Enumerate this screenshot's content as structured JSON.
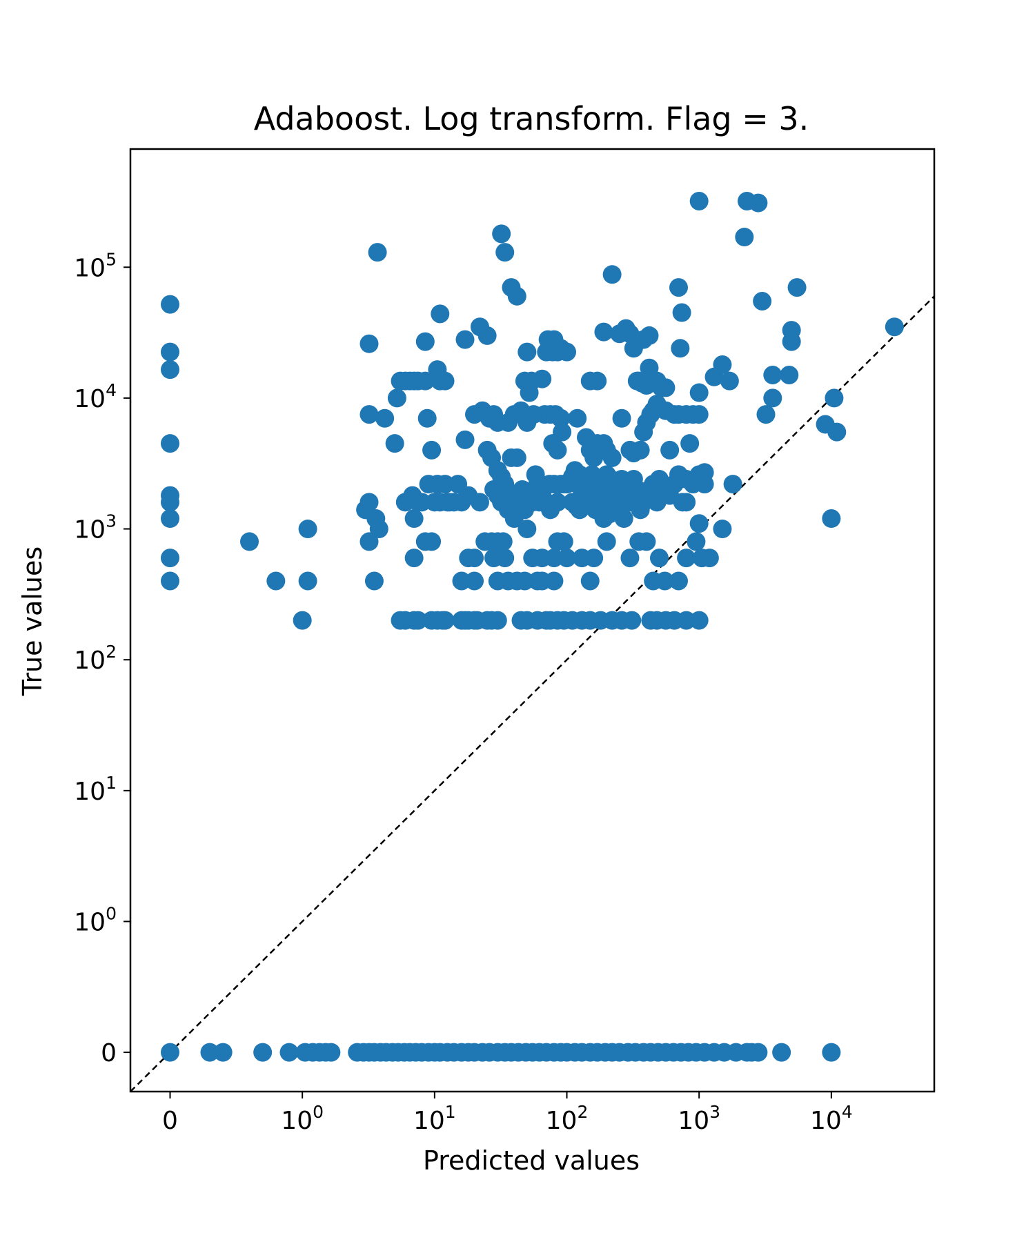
{
  "chart_data": {
    "type": "scatter",
    "title": "Adaboost. Log transform. Flag = 3.",
    "xlabel": "Predicted values",
    "ylabel": "True values",
    "xscale": "symlog",
    "yscale": "symlog",
    "xlim": [
      -0.3,
      60000
    ],
    "ylim": [
      -0.3,
      800000
    ],
    "xticks": [
      {
        "value": 0,
        "base": "0",
        "exp": ""
      },
      {
        "value": 1,
        "base": "10",
        "exp": "0"
      },
      {
        "value": 10,
        "base": "10",
        "exp": "1"
      },
      {
        "value": 100,
        "base": "10",
        "exp": "2"
      },
      {
        "value": 1000,
        "base": "10",
        "exp": "3"
      },
      {
        "value": 10000,
        "base": "10",
        "exp": "4"
      }
    ],
    "yticks": [
      {
        "value": 0,
        "base": "0",
        "exp": ""
      },
      {
        "value": 1,
        "base": "10",
        "exp": "0"
      },
      {
        "value": 10,
        "base": "10",
        "exp": "1"
      },
      {
        "value": 100,
        "base": "10",
        "exp": "2"
      },
      {
        "value": 1000,
        "base": "10",
        "exp": "3"
      },
      {
        "value": 10000,
        "base": "10",
        "exp": "4"
      },
      {
        "value": 100000,
        "base": "10",
        "exp": "5"
      }
    ],
    "grid": false,
    "reference_line": "y = x",
    "colors": {
      "points": "#1f77b4",
      "reference_line": "#000000"
    },
    "points": [
      [
        0,
        52000
      ],
      [
        0,
        22500
      ],
      [
        0,
        16500
      ],
      [
        0,
        4500
      ],
      [
        0,
        1800
      ],
      [
        0,
        1600
      ],
      [
        0,
        1200
      ],
      [
        0,
        600
      ],
      [
        0,
        400
      ],
      [
        0.6,
        800
      ],
      [
        0.8,
        400
      ],
      [
        1,
        200
      ],
      [
        1.1,
        1000
      ],
      [
        1.1,
        400
      ],
      [
        3,
        1400
      ],
      [
        3.2,
        1600
      ],
      [
        3.2,
        800
      ],
      [
        3.6,
        1200
      ],
      [
        3.8,
        1000
      ],
      [
        3.5,
        400
      ],
      [
        3.2,
        26000
      ],
      [
        3.2,
        7500
      ],
      [
        3.7,
        130000
      ],
      [
        4.2,
        7000
      ],
      [
        5,
        4500
      ],
      [
        5.2,
        10000
      ],
      [
        5.5,
        13500
      ],
      [
        6,
        13500
      ],
      [
        6.5,
        13500
      ],
      [
        7,
        13500
      ],
      [
        7.5,
        13500
      ],
      [
        8.5,
        13500
      ],
      [
        8.5,
        27000
      ],
      [
        8.8,
        7000
      ],
      [
        9.5,
        4000
      ],
      [
        10.5,
        16500
      ],
      [
        11,
        13500
      ],
      [
        12,
        13500
      ],
      [
        11,
        44000
      ],
      [
        6,
        1600
      ],
      [
        6.8,
        1800
      ],
      [
        7,
        1200
      ],
      [
        7.5,
        1600
      ],
      [
        8,
        1600
      ],
      [
        8.5,
        800
      ],
      [
        9.5,
        800
      ],
      [
        9,
        2200
      ],
      [
        10,
        1600
      ],
      [
        10.5,
        2200
      ],
      [
        11,
        1600
      ],
      [
        12,
        2200
      ],
      [
        12.5,
        1600
      ],
      [
        13,
        1600
      ],
      [
        14,
        1600
      ],
      [
        15,
        2200
      ],
      [
        16,
        1600
      ],
      [
        17,
        4800
      ],
      [
        18,
        1800
      ],
      [
        7,
        600
      ],
      [
        5.5,
        200
      ],
      [
        6,
        200
      ],
      [
        7,
        200
      ],
      [
        7.5,
        200
      ],
      [
        9.5,
        200
      ],
      [
        10.5,
        200
      ],
      [
        11.5,
        200
      ],
      [
        12,
        200
      ],
      [
        16,
        200
      ],
      [
        17,
        200
      ],
      [
        18,
        200
      ],
      [
        20,
        200
      ],
      [
        21,
        200
      ],
      [
        25,
        200
      ],
      [
        27,
        200
      ],
      [
        30,
        200
      ],
      [
        17,
        28000
      ],
      [
        20,
        7500
      ],
      [
        22,
        35000
      ],
      [
        25,
        30000
      ],
      [
        23,
        8000
      ],
      [
        26,
        7000
      ],
      [
        28,
        7500
      ],
      [
        30,
        6500
      ],
      [
        25,
        4000
      ],
      [
        27,
        3500
      ],
      [
        30,
        2800
      ],
      [
        32,
        2500
      ],
      [
        34,
        2200
      ],
      [
        36,
        1800
      ],
      [
        38,
        1600
      ],
      [
        40,
        1500
      ],
      [
        42,
        1800
      ],
      [
        36,
        1400
      ],
      [
        40,
        1200
      ],
      [
        44,
        1600
      ],
      [
        46,
        2000
      ],
      [
        50,
        1800
      ],
      [
        48,
        1400
      ],
      [
        30,
        1800
      ],
      [
        32,
        1600
      ],
      [
        28,
        2000
      ],
      [
        22,
        1600
      ],
      [
        24,
        800
      ],
      [
        27,
        800
      ],
      [
        30,
        800
      ],
      [
        33,
        800
      ],
      [
        20,
        600
      ],
      [
        18,
        600
      ],
      [
        28,
        600
      ],
      [
        34,
        600
      ],
      [
        16,
        400
      ],
      [
        20,
        400
      ],
      [
        30,
        400
      ],
      [
        36,
        400
      ],
      [
        42,
        400
      ],
      [
        48,
        400
      ],
      [
        32,
        180000
      ],
      [
        34,
        130000
      ],
      [
        38,
        70000
      ],
      [
        42,
        60000
      ],
      [
        50,
        22500
      ],
      [
        48,
        13500
      ],
      [
        52,
        11000
      ],
      [
        54,
        13500
      ],
      [
        56,
        7500
      ],
      [
        50,
        6500
      ],
      [
        42,
        3500
      ],
      [
        38,
        3500
      ],
      [
        45,
        8000
      ],
      [
        40,
        7500
      ],
      [
        36,
        6500
      ],
      [
        58,
        2600
      ],
      [
        60,
        2200
      ],
      [
        65,
        1800
      ],
      [
        70,
        1600
      ],
      [
        74,
        2200
      ],
      [
        80,
        2200
      ],
      [
        85,
        1600
      ],
      [
        90,
        2200
      ],
      [
        95,
        2200
      ],
      [
        100,
        2200
      ],
      [
        55,
        1600
      ],
      [
        62,
        1600
      ],
      [
        75,
        1400
      ],
      [
        50,
        1000
      ],
      [
        45,
        200
      ],
      [
        50,
        200
      ],
      [
        60,
        200
      ],
      [
        70,
        200
      ],
      [
        75,
        200
      ],
      [
        85,
        200
      ],
      [
        95,
        200
      ],
      [
        60,
        400
      ],
      [
        65,
        400
      ],
      [
        80,
        400
      ],
      [
        55,
        600
      ],
      [
        65,
        600
      ],
      [
        80,
        600
      ],
      [
        85,
        800
      ],
      [
        95,
        800
      ],
      [
        100,
        600
      ],
      [
        72,
        28000
      ],
      [
        80,
        28000
      ],
      [
        70,
        22500
      ],
      [
        78,
        22500
      ],
      [
        85,
        22500
      ],
      [
        90,
        24000
      ],
      [
        100,
        22500
      ],
      [
        65,
        14000
      ],
      [
        68,
        7500
      ],
      [
        75,
        7500
      ],
      [
        82,
        7500
      ],
      [
        90,
        7000
      ],
      [
        92,
        5500
      ],
      [
        78,
        4500
      ],
      [
        85,
        4000
      ],
      [
        110,
        2500
      ],
      [
        115,
        2800
      ],
      [
        120,
        2200
      ],
      [
        125,
        2600
      ],
      [
        130,
        1800
      ],
      [
        135,
        2200
      ],
      [
        140,
        2000
      ],
      [
        145,
        2400
      ],
      [
        150,
        1800
      ],
      [
        155,
        2600
      ],
      [
        160,
        2200
      ],
      [
        165,
        1600
      ],
      [
        170,
        2400
      ],
      [
        175,
        1800
      ],
      [
        180,
        2000
      ],
      [
        185,
        1600
      ],
      [
        190,
        2200
      ],
      [
        200,
        2600
      ],
      [
        210,
        1800
      ],
      [
        215,
        2400
      ],
      [
        220,
        2000
      ],
      [
        230,
        1800
      ],
      [
        240,
        2200
      ],
      [
        250,
        1600
      ],
      [
        260,
        2400
      ],
      [
        275,
        2000
      ],
      [
        290,
        1800
      ],
      [
        300,
        2200
      ],
      [
        320,
        2400
      ],
      [
        340,
        2000
      ],
      [
        110,
        1600
      ],
      [
        118,
        1500
      ],
      [
        125,
        1400
      ],
      [
        135,
        1500
      ],
      [
        145,
        1700
      ],
      [
        165,
        1400
      ],
      [
        175,
        1500
      ],
      [
        190,
        1200
      ],
      [
        210,
        1300
      ],
      [
        230,
        1600
      ],
      [
        250,
        1400
      ],
      [
        270,
        1200
      ],
      [
        300,
        1600
      ],
      [
        330,
        1700
      ],
      [
        360,
        1400
      ],
      [
        380,
        1600
      ],
      [
        400,
        1800
      ],
      [
        420,
        2000
      ],
      [
        450,
        2200
      ],
      [
        480,
        1600
      ],
      [
        500,
        2400
      ],
      [
        550,
        2000
      ],
      [
        600,
        1800
      ],
      [
        650,
        2200
      ],
      [
        700,
        2600
      ],
      [
        750,
        1600
      ],
      [
        800,
        2400
      ],
      [
        900,
        2200
      ],
      [
        1000,
        2600
      ],
      [
        1100,
        2200
      ],
      [
        120,
        7000
      ],
      [
        140,
        5000
      ],
      [
        150,
        4000
      ],
      [
        160,
        3500
      ],
      [
        170,
        4500
      ],
      [
        190,
        4500
      ],
      [
        200,
        4000
      ],
      [
        220,
        3500
      ],
      [
        260,
        7000
      ],
      [
        300,
        4000
      ],
      [
        320,
        3800
      ],
      [
        360,
        4000
      ],
      [
        380,
        5500
      ],
      [
        400,
        6500
      ],
      [
        430,
        7500
      ],
      [
        450,
        8000
      ],
      [
        480,
        9000
      ],
      [
        520,
        12000
      ],
      [
        560,
        8000
      ],
      [
        600,
        4000
      ],
      [
        650,
        7500
      ],
      [
        700,
        7500
      ],
      [
        800,
        7500
      ],
      [
        900,
        7500
      ],
      [
        1000,
        7500
      ],
      [
        850,
        4500
      ],
      [
        340,
        13500
      ],
      [
        370,
        13000
      ],
      [
        400,
        12500
      ],
      [
        420,
        17000
      ],
      [
        150,
        13500
      ],
      [
        170,
        13500
      ],
      [
        190,
        32000
      ],
      [
        220,
        88000
      ],
      [
        250,
        31000
      ],
      [
        280,
        34000
      ],
      [
        300,
        31000
      ],
      [
        320,
        24000
      ],
      [
        380,
        28000
      ],
      [
        420,
        30000
      ],
      [
        350,
        13500
      ],
      [
        480,
        13500
      ],
      [
        560,
        12000
      ],
      [
        110,
        200
      ],
      [
        130,
        200
      ],
      [
        150,
        200
      ],
      [
        180,
        200
      ],
      [
        220,
        200
      ],
      [
        260,
        200
      ],
      [
        310,
        200
      ],
      [
        430,
        200
      ],
      [
        480,
        200
      ],
      [
        560,
        200
      ],
      [
        650,
        200
      ],
      [
        800,
        200
      ],
      [
        1000,
        200
      ],
      [
        130,
        600
      ],
      [
        150,
        400
      ],
      [
        160,
        600
      ],
      [
        200,
        800
      ],
      [
        300,
        600
      ],
      [
        350,
        800
      ],
      [
        400,
        800
      ],
      [
        450,
        400
      ],
      [
        500,
        600
      ],
      [
        550,
        400
      ],
      [
        700,
        400
      ],
      [
        800,
        600
      ],
      [
        950,
        800
      ],
      [
        1050,
        600
      ],
      [
        1200,
        600
      ],
      [
        700,
        70000
      ],
      [
        740,
        45000
      ],
      [
        720,
        24000
      ],
      [
        1000,
        11000
      ],
      [
        1300,
        14500
      ],
      [
        1500,
        18000
      ],
      [
        1700,
        13500
      ],
      [
        1800,
        2200
      ],
      [
        1500,
        1000
      ],
      [
        1000,
        1100
      ],
      [
        800,
        1600
      ],
      [
        700,
        2400
      ],
      [
        1100,
        2700
      ],
      [
        1000,
        320000
      ],
      [
        2200,
        170000
      ],
      [
        2300,
        320000
      ],
      [
        2800,
        310000
      ],
      [
        3000,
        55000
      ],
      [
        5500,
        70000
      ],
      [
        3200,
        7500
      ],
      [
        3600,
        10000
      ],
      [
        3600,
        15000
      ],
      [
        4800,
        15000
      ],
      [
        5000,
        27000
      ],
      [
        5000,
        33000
      ],
      [
        9000,
        6300
      ],
      [
        10500,
        10000
      ],
      [
        11000,
        5500
      ],
      [
        10000,
        1200
      ],
      [
        30000,
        35000
      ],
      [
        0,
        0
      ],
      [
        0.3,
        0
      ],
      [
        0.4,
        0
      ],
      [
        0.7,
        0
      ],
      [
        0.9,
        0
      ],
      [
        1.05,
        0
      ],
      [
        1.2,
        0
      ],
      [
        1.35,
        0
      ],
      [
        1.5,
        0
      ],
      [
        1.65,
        0
      ],
      [
        2.6,
        0
      ],
      [
        2.9,
        0
      ],
      [
        3.2,
        0
      ],
      [
        3.5,
        0
      ],
      [
        3.9,
        0
      ],
      [
        4.3,
        0
      ],
      [
        4.8,
        0
      ],
      [
        5.3,
        0
      ],
      [
        5.9,
        0
      ],
      [
        6.5,
        0
      ],
      [
        7.2,
        0
      ],
      [
        8,
        0
      ],
      [
        9,
        0
      ],
      [
        10,
        0
      ],
      [
        11,
        0
      ],
      [
        12.5,
        0
      ],
      [
        14,
        0
      ],
      [
        16,
        0
      ],
      [
        18,
        0
      ],
      [
        20,
        0
      ],
      [
        23,
        0
      ],
      [
        26,
        0
      ],
      [
        30,
        0
      ],
      [
        34,
        0
      ],
      [
        38,
        0
      ],
      [
        43,
        0
      ],
      [
        49,
        0
      ],
      [
        55,
        0
      ],
      [
        62,
        0
      ],
      [
        70,
        0
      ],
      [
        80,
        0
      ],
      [
        90,
        0
      ],
      [
        100,
        0
      ],
      [
        115,
        0
      ],
      [
        130,
        0
      ],
      [
        150,
        0
      ],
      [
        170,
        0
      ],
      [
        195,
        0
      ],
      [
        220,
        0
      ],
      [
        250,
        0
      ],
      [
        290,
        0
      ],
      [
        330,
        0
      ],
      [
        380,
        0
      ],
      [
        430,
        0
      ],
      [
        490,
        0
      ],
      [
        560,
        0
      ],
      [
        640,
        0
      ],
      [
        730,
        0
      ],
      [
        830,
        0
      ],
      [
        950,
        0
      ],
      [
        1100,
        0
      ],
      [
        1300,
        0
      ],
      [
        1550,
        0
      ],
      [
        1900,
        0
      ],
      [
        2300,
        0
      ],
      [
        2500,
        0
      ],
      [
        2800,
        0
      ],
      [
        4200,
        0
      ],
      [
        10000,
        0
      ]
    ]
  }
}
